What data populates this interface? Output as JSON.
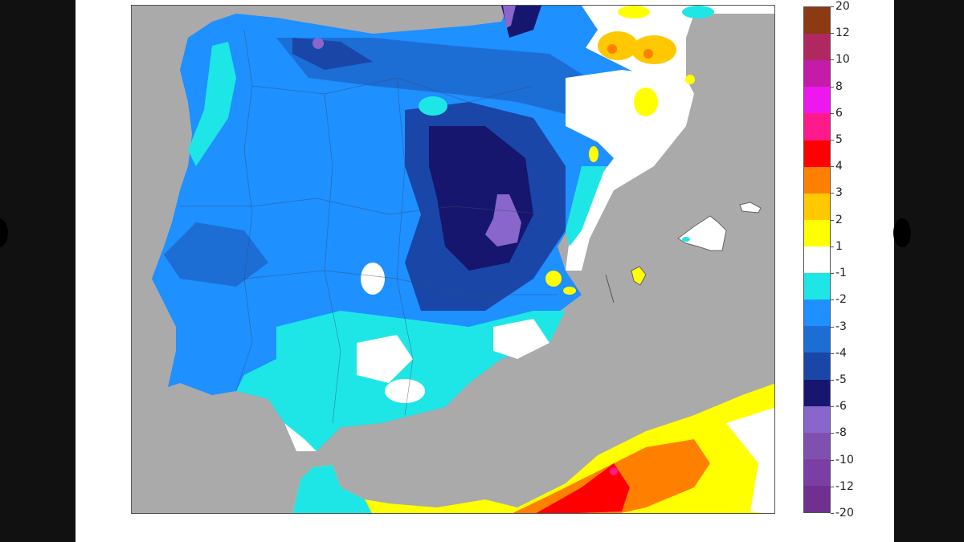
{
  "map": {
    "subject": "Temperature anomaly map of the Iberian Peninsula, Balearic Islands and northern Morocco/Algeria coast",
    "background_sea_color": "#aaaaaa",
    "regions": [
      {
        "name": "north-west-galicia",
        "dominant_class": "-3 to -2"
      },
      {
        "name": "cantabrian-coast",
        "dominant_class": "-5 to -4"
      },
      {
        "name": "central-iberian-system-core",
        "dominant_class": "-8 to -6"
      },
      {
        "name": "north-east-catalonia",
        "dominant_class": "1 to 3"
      },
      {
        "name": "east-valencia-coast",
        "dominant_class": "-1 to 2"
      },
      {
        "name": "south-andalusia",
        "dominant_class": "-2 to -1"
      },
      {
        "name": "balearic-islands",
        "dominant_class": "-1 to 1"
      },
      {
        "name": "north-africa-coast",
        "dominant_class": "2 to 5"
      }
    ]
  },
  "colorbar": {
    "segments": [
      {
        "upper": "20",
        "lower": "12",
        "color": "#8b3a12"
      },
      {
        "upper": "12",
        "lower": "10",
        "color": "#b02860"
      },
      {
        "upper": "10",
        "lower": "8",
        "color": "#c21ca8"
      },
      {
        "upper": "8",
        "lower": "6",
        "color": "#ee18ee"
      },
      {
        "upper": "6",
        "lower": "5",
        "color": "#ff1a8c"
      },
      {
        "upper": "5",
        "lower": "4",
        "color": "#ff0000"
      },
      {
        "upper": "4",
        "lower": "3",
        "color": "#ff8000"
      },
      {
        "upper": "3",
        "lower": "2",
        "color": "#ffc800"
      },
      {
        "upper": "2",
        "lower": "1",
        "color": "#ffff00"
      },
      {
        "upper": "1",
        "lower": "-1",
        "color": "#ffffff"
      },
      {
        "upper": "-1",
        "lower": "-2",
        "color": "#1ee6e6"
      },
      {
        "upper": "-2",
        "lower": "-3",
        "color": "#1e90ff"
      },
      {
        "upper": "-3",
        "lower": "-4",
        "color": "#1c6ed4"
      },
      {
        "upper": "-4",
        "lower": "-5",
        "color": "#1a46a8"
      },
      {
        "upper": "-5",
        "lower": "-6",
        "color": "#16166e"
      },
      {
        "upper": "-6",
        "lower": "-8",
        "color": "#8866cc"
      },
      {
        "upper": "-8",
        "lower": "-10",
        "color": "#8050b0"
      },
      {
        "upper": "-10",
        "lower": "-12",
        "color": "#7a3ea4"
      },
      {
        "upper": "-12",
        "lower": "-20",
        "color": "#703090"
      }
    ],
    "tick_labels": [
      "20",
      "12",
      "10",
      "8",
      "6",
      "5",
      "4",
      "3",
      "2",
      "1",
      "-1",
      "-2",
      "-3",
      "-4",
      "-5",
      "-6",
      "-8",
      "-10",
      "-12",
      "-20"
    ]
  }
}
